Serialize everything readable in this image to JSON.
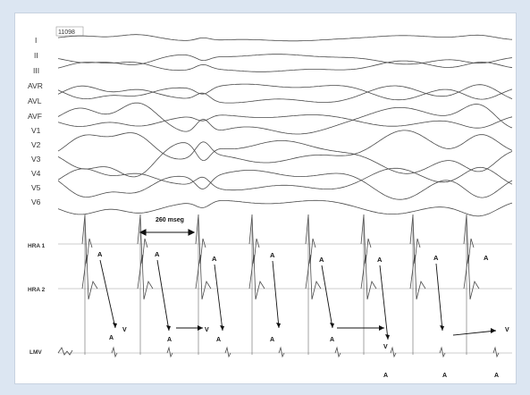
{
  "figure": {
    "recording_id": "11098",
    "surface_leads": [
      "I",
      "II",
      "III",
      "AVR",
      "AVL",
      "AVF",
      "V1",
      "V2",
      "V3",
      "V4",
      "V5",
      "V6"
    ],
    "intracardiac_leads": [
      "HRA 1",
      "HRA 2",
      "LMV"
    ],
    "interval_label": "260 mseg",
    "atrial_marker": "A",
    "ventricular_marker": "V"
  },
  "colors": {
    "background": "#dce6f2",
    "panel": "#ffffff",
    "trace": "#4a4a4a",
    "arrow": "#111111",
    "grid": "#d8d8d8"
  }
}
